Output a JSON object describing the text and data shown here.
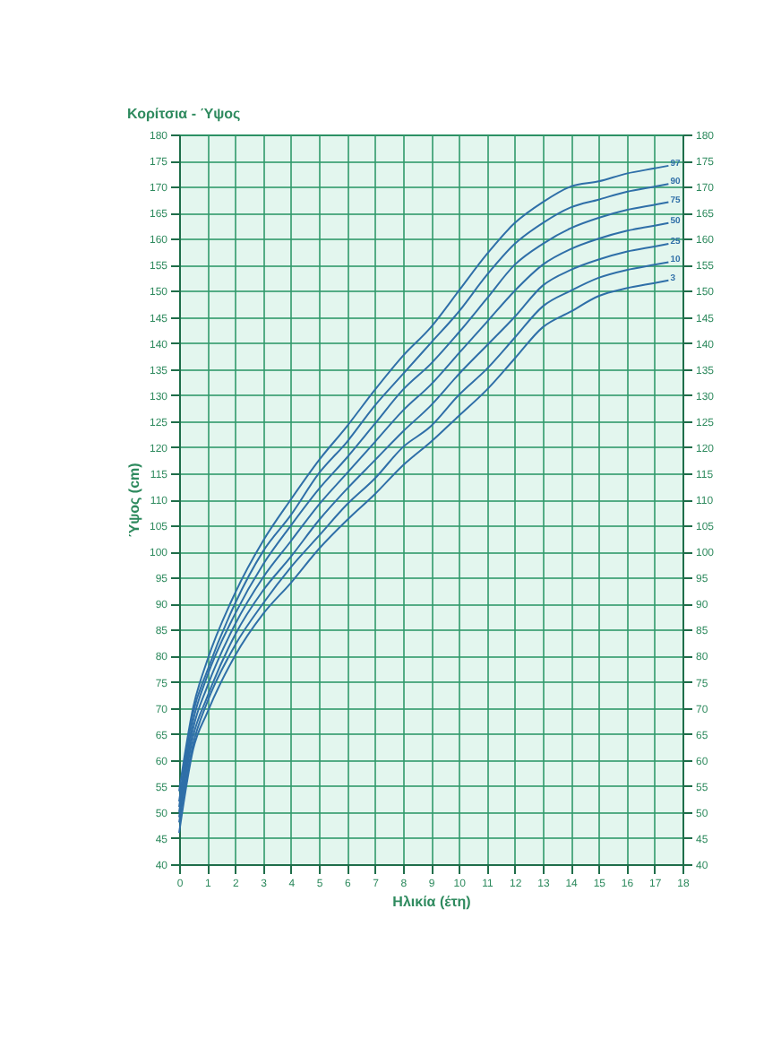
{
  "chart_data": {
    "type": "line",
    "title": "Κορίτσια - Ύψος",
    "xlabel": "Ηλικία (έτη)",
    "ylabel": "Ύψος (cm)",
    "x": [
      0,
      0.5,
      1,
      2,
      3,
      4,
      5,
      6,
      7,
      8,
      9,
      10,
      11,
      12,
      13,
      14,
      15,
      16,
      17,
      17.5
    ],
    "series": [
      {
        "name": "97",
        "color": "#2f6fa8",
        "values": [
          54,
          70,
          79,
          92,
          102,
          110,
          117.5,
          124,
          131,
          137.5,
          143,
          150,
          157,
          163,
          167,
          170,
          171,
          172.5,
          173.5,
          174
        ]
      },
      {
        "name": "90",
        "color": "#2f6fa8",
        "values": [
          52,
          69,
          77,
          90,
          100,
          107,
          115,
          121,
          128,
          134,
          140,
          146,
          153,
          159,
          163,
          166,
          167.5,
          169,
          170,
          170.5
        ]
      },
      {
        "name": "75",
        "color": "#2f6fa8",
        "values": [
          51,
          67.5,
          76,
          88,
          97.5,
          105,
          112,
          118,
          124.5,
          131,
          136,
          142,
          148.5,
          155,
          159,
          162,
          164,
          165.5,
          166.5,
          167
        ]
      },
      {
        "name": "50",
        "color": "#2f6fa8",
        "values": [
          50,
          66,
          74,
          86,
          95,
          102,
          109,
          115,
          121,
          127,
          132,
          138,
          144,
          150,
          155,
          158,
          160,
          161.5,
          162.5,
          163
        ]
      },
      {
        "name": "25",
        "color": "#2f6fa8",
        "values": [
          49,
          64.5,
          72,
          84,
          92.5,
          99,
          106,
          112,
          117.5,
          123,
          128,
          134,
          139.5,
          145,
          151,
          154,
          156,
          157.5,
          158.5,
          159
        ]
      },
      {
        "name": "10",
        "color": "#2f6fa8",
        "values": [
          48,
          63,
          71,
          82,
          90,
          97,
          103,
          109,
          114,
          120,
          124,
          130,
          135,
          141,
          147,
          150,
          152.5,
          154,
          155,
          155.5
        ]
      },
      {
        "name": "3",
        "color": "#2f6fa8",
        "values": [
          46,
          62,
          69,
          80,
          88,
          94,
          100.5,
          106,
          111,
          116.5,
          121,
          126,
          131,
          137,
          143,
          146,
          149,
          150.5,
          151.5,
          152
        ]
      }
    ],
    "xlim": [
      0,
      18
    ],
    "xticks": [
      0,
      1,
      2,
      3,
      4,
      5,
      6,
      7,
      8,
      9,
      10,
      11,
      12,
      13,
      14,
      15,
      16,
      17,
      18
    ],
    "ylim": [
      40,
      180
    ],
    "yticks": [
      40,
      45,
      50,
      55,
      60,
      65,
      70,
      75,
      80,
      85,
      90,
      95,
      100,
      105,
      110,
      115,
      120,
      125,
      130,
      135,
      140,
      145,
      150,
      155,
      160,
      165,
      170,
      175,
      180
    ],
    "y2lim": [
      40,
      180
    ],
    "y2ticks": [
      40,
      45,
      50,
      55,
      60,
      65,
      70,
      75,
      80,
      85,
      90,
      95,
      100,
      105,
      110,
      115,
      120,
      125,
      130,
      135,
      140,
      145,
      150,
      155,
      160,
      165,
      170,
      175,
      180
    ],
    "grid": true,
    "line_style": "solid",
    "marker": "none"
  }
}
